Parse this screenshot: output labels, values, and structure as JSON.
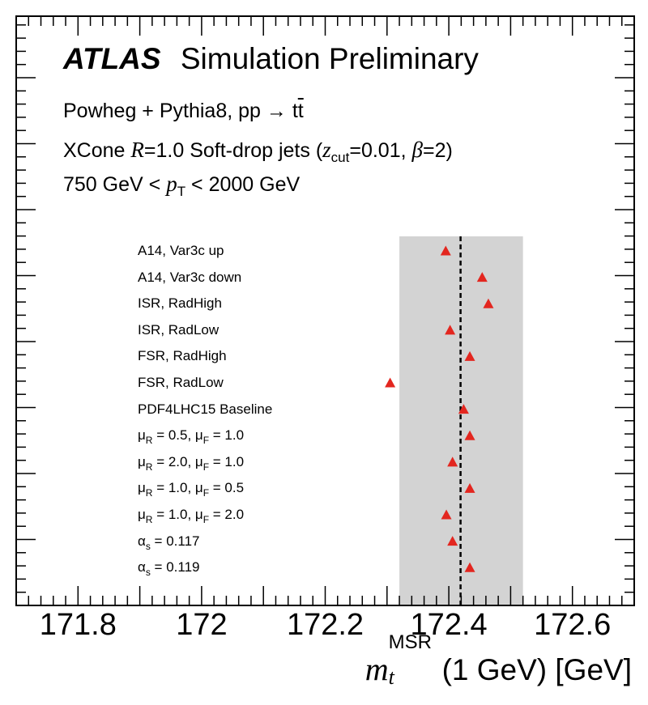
{
  "header": {
    "logo": "ATLAS",
    "title": "Simulation Preliminary",
    "line1": "Powheg + Pythia8, pp → t",
    "line1_tbar": "t",
    "line2_pre": "XCone ",
    "line2_R": "R",
    "line2_mid": "=1.0 Soft-drop jets (",
    "line2_z": "z",
    "line2_zsub": "cut",
    "line2_zval": "=0.01, ",
    "line2_beta": "β",
    "line2_end": "=2)",
    "line3_pre": "750 GeV < ",
    "line3_p": "p",
    "line3_psub": "T",
    "line3_end": " < 2000 GeV"
  },
  "xaxis": {
    "label_m": "m",
    "label_sup": "MSR",
    "label_sub": "t",
    "label_rest": "(1 GeV) [GeV]"
  },
  "colors": {
    "marker": "#e3261f",
    "band": "#d3d3d3",
    "axis": "#000000"
  },
  "chart_data": {
    "type": "scatter",
    "marker": "red-triangle",
    "xlim": [
      171.7,
      172.7
    ],
    "xticks": [
      "171.8",
      "172",
      "172.2",
      "172.4",
      "172.6"
    ],
    "xtick_values": [
      171.8,
      172.0,
      172.2,
      172.4,
      172.6
    ],
    "nominal": 172.419,
    "band": [
      172.32,
      172.52
    ],
    "variations": [
      {
        "label_main": "A14, Var3c up",
        "label_html": "A14, Var3c up",
        "value": 172.395
      },
      {
        "label_main": "A14, Var3c down",
        "label_html": "A14, Var3c down",
        "value": 172.454
      },
      {
        "label_main": "ISR, RadHigh",
        "label_html": "ISR, RadHigh",
        "value": 172.464
      },
      {
        "label_main": "ISR, RadLow",
        "label_html": "ISR, RadLow",
        "value": 172.402
      },
      {
        "label_main": "FSR, RadHigh",
        "label_html": "FSR, RadHigh",
        "value": 172.434
      },
      {
        "label_main": "FSR, RadLow",
        "label_html": "FSR, RadLow",
        "value": 172.305
      },
      {
        "label_main": "PDF4LHC15 Baseline",
        "label_html": "PDF4LHC15 Baseline",
        "value": 172.424
      },
      {
        "label_main": "μR = 0.5, μF = 1.0",
        "label_html": "μ<span class=\"s\">R</span> = 0.5, μ<span class=\"s\">F</span> = 1.0",
        "value": 172.434
      },
      {
        "label_main": "μR = 2.0, μF = 1.0",
        "label_html": "μ<span class=\"s\">R</span> = 2.0, μ<span class=\"s\">F</span> = 1.0",
        "value": 172.406
      },
      {
        "label_main": "μR = 1.0, μF = 0.5",
        "label_html": "μ<span class=\"s\">R</span> = 1.0, μ<span class=\"s\">F</span> = 0.5",
        "value": 172.434
      },
      {
        "label_main": "μR = 1.0, μF = 2.0",
        "label_html": "μ<span class=\"s\">R</span> = 1.0, μ<span class=\"s\">F</span> = 2.0",
        "value": 172.396
      },
      {
        "label_main": "αs = 0.117",
        "label_html": "α<span class=\"s\">s</span> = 0.117",
        "value": 172.406
      },
      {
        "label_main": "αs = 0.119",
        "label_html": "α<span class=\"s\">s</span> = 0.119",
        "value": 172.434
      }
    ]
  }
}
